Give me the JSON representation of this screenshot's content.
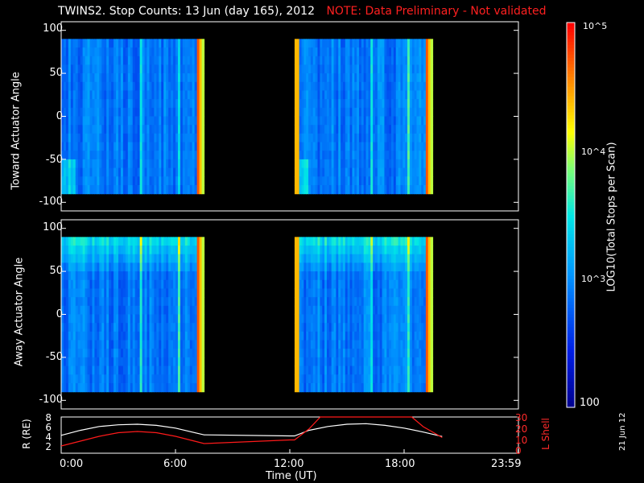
{
  "title": "TWINS2. Stop Counts: 13 Jun (day 165), 2012",
  "note": "NOTE: Data Preliminary - Not validated",
  "date_stamp": "21 Jun 12",
  "colorbar": {
    "label": "LOG10(Total Stops per Scan)",
    "ticks": [
      "10^5",
      "10^4",
      "10^3",
      "100"
    ]
  },
  "chart_data": [
    {
      "type": "heatmap",
      "ylabel": "Toward Actuator Angle",
      "xlabel": "",
      "ylim": [
        -110,
        110
      ],
      "yticks": [
        "100",
        "50",
        "0",
        "-50",
        "-100"
      ],
      "data_segments_hours": [
        [
          0.0,
          7.5
        ],
        [
          12.25,
          19.5
        ]
      ]
    },
    {
      "type": "heatmap",
      "ylabel": "Away Actuator Angle",
      "xlabel": "",
      "ylim": [
        -110,
        110
      ],
      "yticks": [
        "100",
        "50",
        "0",
        "-50",
        "-100"
      ],
      "data_segments_hours": [
        [
          0.0,
          7.5
        ],
        [
          12.25,
          19.5
        ]
      ]
    },
    {
      "type": "line",
      "ylabel": "R (RE)",
      "ylabel_right": "L Shell",
      "xlabel": "Time (UT)",
      "xticks": [
        "0:00",
        "6:00",
        "12:00",
        "18:00",
        "23:59"
      ],
      "yticks_left": [
        "8",
        "6",
        "4",
        "2"
      ],
      "yticks_right": [
        "30",
        "20",
        "10",
        "0"
      ],
      "ylim_left": [
        1.5,
        8
      ],
      "ylim_right": [
        0,
        30
      ],
      "series": [
        {
          "name": "R",
          "color": "#ffffff",
          "x": [
            0,
            1,
            2,
            3,
            4,
            5,
            6,
            7,
            7.5,
            12,
            12.25,
            13,
            14,
            15,
            16,
            17,
            18,
            19,
            20
          ],
          "y": [
            4.7,
            5.6,
            6.3,
            6.6,
            6.7,
            6.5,
            6.0,
            5.2,
            4.8,
            4.6,
            4.6,
            5.6,
            6.3,
            6.7,
            6.8,
            6.5,
            6.0,
            5.3,
            4.5
          ]
        },
        {
          "name": "L Shell",
          "color": "#ff1a1a",
          "x": [
            0,
            1,
            2,
            3,
            4,
            5,
            6,
            7,
            7.5,
            12,
            12.25,
            13,
            13.6,
            18.4,
            19,
            20
          ],
          "y": [
            6,
            10,
            14,
            17,
            18,
            17,
            14,
            10,
            8,
            11,
            11,
            20,
            30,
            30,
            22,
            13
          ]
        }
      ]
    }
  ]
}
